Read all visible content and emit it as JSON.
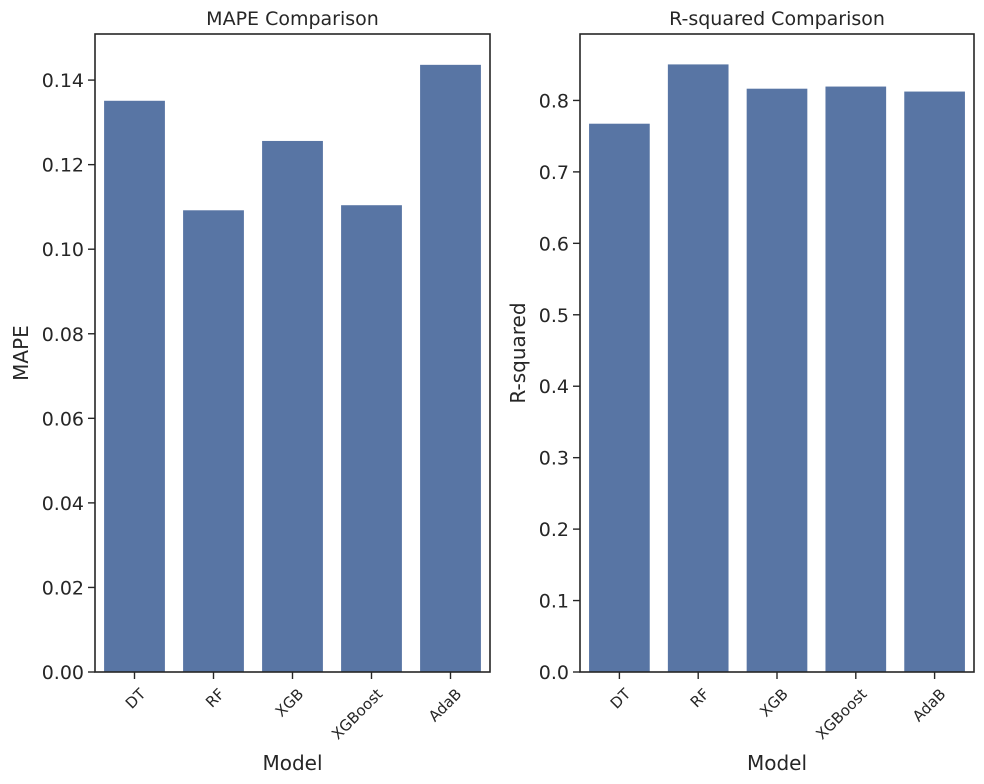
{
  "chart_data": [
    {
      "type": "bar",
      "title": "MAPE Comparison",
      "xlabel": "Model",
      "ylabel": "MAPE",
      "categories": [
        "DT",
        "RF",
        "XGB",
        "XGBoost",
        "AdaB"
      ],
      "values": [
        0.1352,
        0.1093,
        0.1257,
        0.1105,
        0.1437
      ],
      "ylim": [
        0,
        0.1509
      ],
      "yticks": [
        "0.00",
        "0.02",
        "0.04",
        "0.06",
        "0.08",
        "0.10",
        "0.12",
        "0.14"
      ],
      "grid": false,
      "color": "#5875a4"
    },
    {
      "type": "bar",
      "title": "R-squared Comparison",
      "xlabel": "Model",
      "ylabel": "R-squared",
      "categories": [
        "DT",
        "RF",
        "XGB",
        "XGBoost",
        "AdaB"
      ],
      "values": [
        0.768,
        0.851,
        0.817,
        0.82,
        0.813
      ],
      "ylim": [
        0,
        0.893
      ],
      "yticks": [
        "0.0",
        "0.1",
        "0.2",
        "0.3",
        "0.4",
        "0.5",
        "0.6",
        "0.7",
        "0.8"
      ],
      "grid": false,
      "color": "#5875a4"
    }
  ]
}
